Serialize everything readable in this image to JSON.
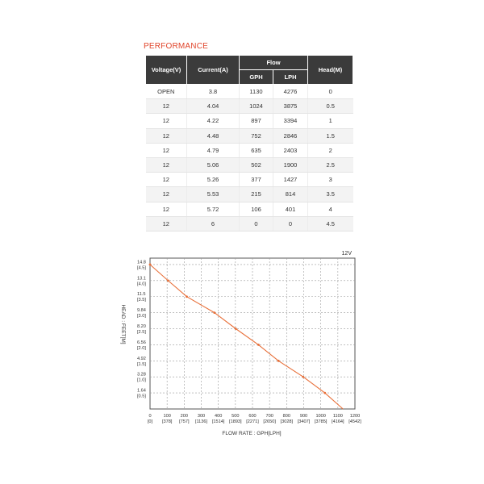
{
  "section_title": "PERFORMANCE",
  "table": {
    "headers": {
      "voltage": "Voltage(V)",
      "current": "Current(A)",
      "flow": "Flow",
      "gph": "GPH",
      "lph": "LPH",
      "head": "Head(M)"
    },
    "rows": [
      [
        "OPEN",
        "3.8",
        "1130",
        "4276",
        "0"
      ],
      [
        "12",
        "4.04",
        "1024",
        "3875",
        "0.5"
      ],
      [
        "12",
        "4.22",
        "897",
        "3394",
        "1"
      ],
      [
        "12",
        "4.48",
        "752",
        "2846",
        "1.5"
      ],
      [
        "12",
        "4.79",
        "635",
        "2403",
        "2"
      ],
      [
        "12",
        "5.06",
        "502",
        "1900",
        "2.5"
      ],
      [
        "12",
        "5.26",
        "377",
        "1427",
        "3"
      ],
      [
        "12",
        "5.53",
        "215",
        "814",
        "3.5"
      ],
      [
        "12",
        "5.72",
        "106",
        "401",
        "4"
      ],
      [
        "12",
        "6",
        "0",
        "0",
        "4.5"
      ]
    ]
  },
  "chart_data": {
    "type": "line",
    "series": [
      {
        "name": "12V",
        "color": "#e8703a",
        "x": [
          0,
          106,
          215,
          377,
          502,
          635,
          752,
          897,
          1024,
          1130
        ],
        "y": [
          4.5,
          4.0,
          3.5,
          3.0,
          2.5,
          2.0,
          1.5,
          1.0,
          0.5,
          0
        ]
      }
    ],
    "xlabel": "FLOW RATE : GPH[LPH]",
    "ylabel": "HEAD : FEET[M]",
    "xlim": [
      0,
      1200
    ],
    "ylim": [
      0,
      4.5
    ],
    "grid": true,
    "x_ticks": [
      {
        "v": 0,
        "main": "0",
        "sub": "[0]"
      },
      {
        "v": 100,
        "main": "100",
        "sub": "[378]"
      },
      {
        "v": 200,
        "main": "200",
        "sub": "[757]"
      },
      {
        "v": 300,
        "main": "300",
        "sub": "[1136]"
      },
      {
        "v": 400,
        "main": "400",
        "sub": "[1514]"
      },
      {
        "v": 500,
        "main": "500",
        "sub": "[1893]"
      },
      {
        "v": 600,
        "main": "600",
        "sub": "[2271]"
      },
      {
        "v": 700,
        "main": "700",
        "sub": "[2650]"
      },
      {
        "v": 800,
        "main": "800",
        "sub": "[3028]"
      },
      {
        "v": 900,
        "main": "900",
        "sub": "[3407]"
      },
      {
        "v": 1000,
        "main": "1000",
        "sub": "[3785]"
      },
      {
        "v": 1100,
        "main": "1100",
        "sub": "[4164]"
      },
      {
        "v": 1200,
        "main": "1200",
        "sub": "[4542]"
      }
    ],
    "y_ticks": [
      {
        "v": 4.5,
        "main": "14.8",
        "sub": "[4.5]"
      },
      {
        "v": 4.0,
        "main": "13.1",
        "sub": "[4.0]"
      },
      {
        "v": 3.5,
        "main": "11.5",
        "sub": "[3.5]"
      },
      {
        "v": 3.0,
        "main": "9.84",
        "sub": "[3.0]"
      },
      {
        "v": 2.5,
        "main": "8.20",
        "sub": "[2.5]"
      },
      {
        "v": 2.0,
        "main": "6.56",
        "sub": "[2.0]"
      },
      {
        "v": 1.5,
        "main": "4.92",
        "sub": "[1.5]"
      },
      {
        "v": 1.0,
        "main": "3.28",
        "sub": "[1.0]"
      },
      {
        "v": 0.5,
        "main": "1.64",
        "sub": "[0.5]"
      }
    ]
  }
}
